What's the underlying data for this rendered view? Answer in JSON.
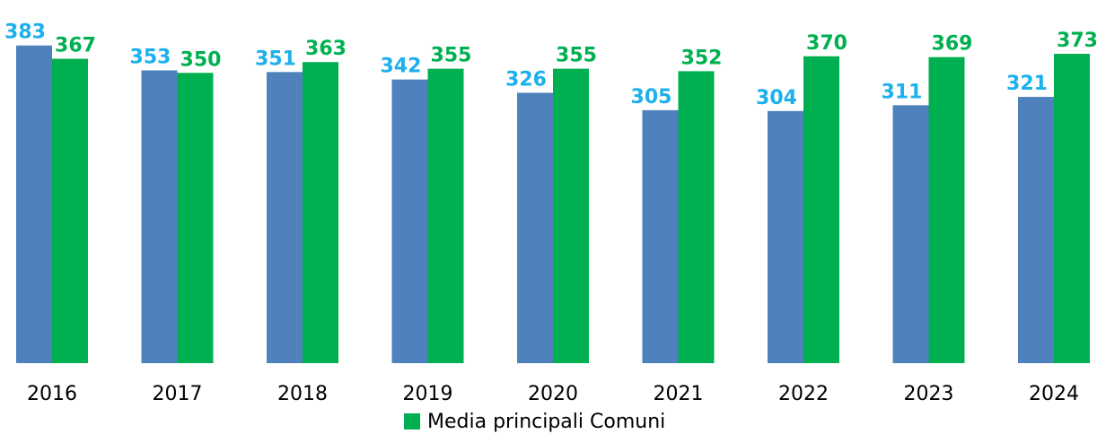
{
  "chart_data": {
    "type": "bar",
    "categories": [
      "2016",
      "2017",
      "2018",
      "2019",
      "2020",
      "2021",
      "2022",
      "2023",
      "2024"
    ],
    "series": [
      {
        "color": "#4f81bd",
        "label_color": "#1cb0ec",
        "values": [
          383,
          353,
          351,
          342,
          326,
          305,
          304,
          311,
          321
        ]
      },
      {
        "name": "Media principali Comuni",
        "color": "#00b050",
        "label_color": "#00b050",
        "values": [
          367,
          350,
          363,
          355,
          355,
          352,
          370,
          369,
          373
        ]
      }
    ],
    "ylim": [
      0,
      400
    ],
    "grid": false,
    "legend": "bottom"
  }
}
